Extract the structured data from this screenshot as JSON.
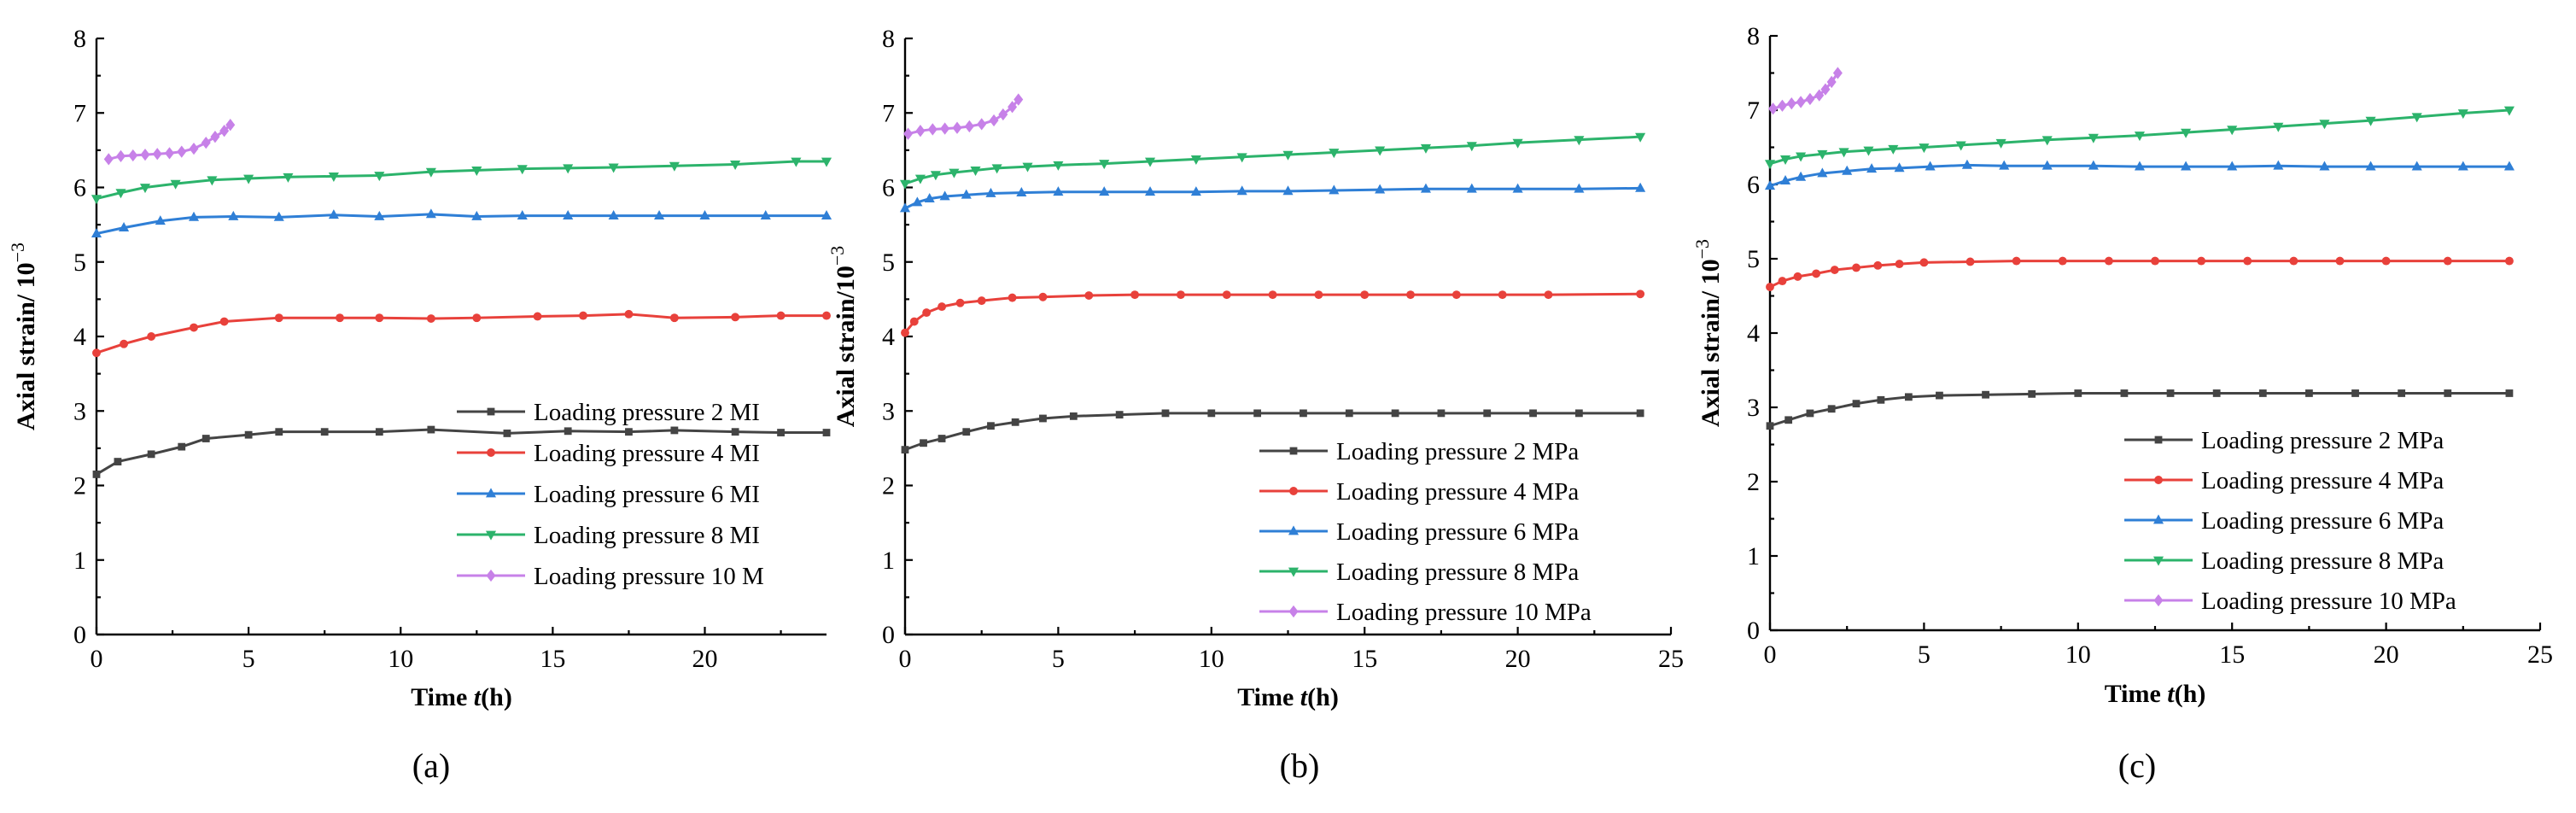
{
  "chart_data": [
    {
      "type": "line",
      "caption": "(a)",
      "xlabel_prefix": "Time ",
      "xlabel_var": "t",
      "xlabel_suffix": "(h)",
      "ylabel_prefix": "Axial strain/ 10",
      "ylabel_exp": "−3",
      "xlim": [
        0,
        24
      ],
      "ylim": [
        0,
        8
      ],
      "xticks": [
        "0",
        "5",
        "10",
        "15",
        "20"
      ],
      "yticks": [
        "0",
        "1",
        "2",
        "3",
        "4",
        "5",
        "6",
        "7",
        "8"
      ],
      "legend_position": "bottom-right",
      "series": [
        {
          "name": "Loading pressure 2 MI",
          "color": "#444444",
          "marker": "square",
          "x": [
            0,
            0.7,
            1.8,
            2.8,
            3.6,
            5,
            6,
            7.5,
            9.3,
            11,
            13.5,
            15.5,
            17.5,
            19,
            21,
            22.5,
            24
          ],
          "y": [
            2.15,
            2.32,
            2.42,
            2.52,
            2.63,
            2.68,
            2.72,
            2.72,
            2.72,
            2.75,
            2.7,
            2.73,
            2.72,
            2.74,
            2.72,
            2.71,
            2.71
          ]
        },
        {
          "name": "Loading pressure 4 MI",
          "color": "#e8413b",
          "marker": "circle",
          "x": [
            0,
            0.9,
            1.8,
            3.2,
            4.2,
            6,
            8,
            9.3,
            11,
            12.5,
            14.5,
            16,
            17.5,
            19,
            21,
            22.5,
            24
          ],
          "y": [
            3.78,
            3.9,
            4.0,
            4.12,
            4.2,
            4.25,
            4.25,
            4.25,
            4.24,
            4.25,
            4.27,
            4.28,
            4.3,
            4.25,
            4.26,
            4.28,
            4.28
          ]
        },
        {
          "name": "Loading pressure 6 MI",
          "color": "#2f7fd6",
          "marker": "triangle-up",
          "x": [
            0,
            0.9,
            2.1,
            3.2,
            4.5,
            6,
            7.8,
            9.3,
            11,
            12.5,
            14,
            15.5,
            17,
            18.5,
            20,
            22,
            24
          ],
          "y": [
            5.38,
            5.46,
            5.55,
            5.6,
            5.61,
            5.6,
            5.63,
            5.61,
            5.64,
            5.61,
            5.62,
            5.62,
            5.62,
            5.62,
            5.62,
            5.62,
            5.62
          ]
        },
        {
          "name": "Loading pressure 8 MI",
          "color": "#2cb36b",
          "marker": "triangle-down",
          "x": [
            0,
            0.8,
            1.6,
            2.6,
            3.8,
            5,
            6.3,
            7.8,
            9.3,
            11,
            12.5,
            14,
            15.5,
            17,
            19,
            21,
            23,
            24
          ],
          "y": [
            5.85,
            5.93,
            6.0,
            6.05,
            6.1,
            6.12,
            6.14,
            6.15,
            6.16,
            6.21,
            6.23,
            6.25,
            6.26,
            6.27,
            6.29,
            6.31,
            6.35,
            6.35
          ]
        },
        {
          "name": "Loading pressure 10 M",
          "color": "#c781e8",
          "marker": "diamond",
          "x": [
            0.4,
            0.8,
            1.2,
            1.6,
            2,
            2.4,
            2.8,
            3.2,
            3.6,
            3.9,
            4.2,
            4.4
          ],
          "y": [
            6.38,
            6.42,
            6.43,
            6.44,
            6.45,
            6.46,
            6.48,
            6.52,
            6.6,
            6.68,
            6.76,
            6.84
          ]
        }
      ]
    },
    {
      "type": "line",
      "caption": "(b)",
      "xlabel_prefix": "Time ",
      "xlabel_var": "t",
      "xlabel_suffix": "(h)",
      "ylabel_prefix": "Axial strain/10",
      "ylabel_exp": "−3",
      "xlim": [
        0,
        25
      ],
      "ylim": [
        0,
        8
      ],
      "xticks": [
        "0",
        "5",
        "10",
        "15",
        "20",
        "25"
      ],
      "yticks": [
        "0",
        "1",
        "2",
        "3",
        "4",
        "5",
        "6",
        "7",
        "8"
      ],
      "legend_position": "bottom-right",
      "series": [
        {
          "name": "Loading pressure 2 MPa",
          "color": "#444444",
          "marker": "square",
          "x": [
            0,
            0.6,
            1.2,
            2,
            2.8,
            3.6,
            4.5,
            5.5,
            7,
            8.5,
            10,
            11.5,
            13,
            14.5,
            16,
            17.5,
            19,
            20.5,
            22,
            24
          ],
          "y": [
            2.48,
            2.57,
            2.63,
            2.72,
            2.8,
            2.85,
            2.9,
            2.93,
            2.95,
            2.97,
            2.97,
            2.97,
            2.97,
            2.97,
            2.97,
            2.97,
            2.97,
            2.97,
            2.97,
            2.97
          ]
        },
        {
          "name": "Loading pressure 4 MPa",
          "color": "#e8413b",
          "marker": "circle",
          "x": [
            0,
            0.3,
            0.7,
            1.2,
            1.8,
            2.5,
            3.5,
            4.5,
            6,
            7.5,
            9,
            10.5,
            12,
            13.5,
            15,
            16.5,
            18,
            19.5,
            21,
            24
          ],
          "y": [
            4.05,
            4.2,
            4.32,
            4.4,
            4.45,
            4.48,
            4.52,
            4.53,
            4.55,
            4.56,
            4.56,
            4.56,
            4.56,
            4.56,
            4.56,
            4.56,
            4.56,
            4.56,
            4.56,
            4.57
          ]
        },
        {
          "name": "Loading pressure 6 MPa",
          "color": "#2f7fd6",
          "marker": "triangle-up",
          "x": [
            0,
            0.4,
            0.8,
            1.3,
            2,
            2.8,
            3.8,
            5,
            6.5,
            8,
            9.5,
            11,
            12.5,
            14,
            15.5,
            17,
            18.5,
            20,
            22,
            24
          ],
          "y": [
            5.72,
            5.8,
            5.85,
            5.88,
            5.9,
            5.92,
            5.93,
            5.94,
            5.94,
            5.94,
            5.94,
            5.95,
            5.95,
            5.96,
            5.97,
            5.98,
            5.98,
            5.98,
            5.98,
            5.99
          ]
        },
        {
          "name": "Loading pressure 8 MPa",
          "color": "#2cb36b",
          "marker": "triangle-down",
          "x": [
            0,
            0.5,
            1,
            1.6,
            2.3,
            3,
            4,
            5,
            6.5,
            8,
            9.5,
            11,
            12.5,
            14,
            15.5,
            17,
            18.5,
            20,
            22,
            24
          ],
          "y": [
            6.05,
            6.12,
            6.17,
            6.2,
            6.23,
            6.26,
            6.28,
            6.3,
            6.32,
            6.35,
            6.38,
            6.41,
            6.44,
            6.47,
            6.5,
            6.53,
            6.56,
            6.6,
            6.64,
            6.68
          ]
        },
        {
          "name": "Loading pressure 10 MPa",
          "color": "#c781e8",
          "marker": "diamond",
          "x": [
            0.1,
            0.5,
            0.9,
            1.3,
            1.7,
            2.1,
            2.5,
            2.9,
            3.2,
            3.5,
            3.7
          ],
          "y": [
            6.72,
            6.76,
            6.78,
            6.79,
            6.8,
            6.82,
            6.85,
            6.9,
            6.98,
            7.08,
            7.18
          ]
        }
      ]
    },
    {
      "type": "line",
      "caption": "(c)",
      "xlabel_prefix": "Time ",
      "xlabel_var": "t",
      "xlabel_suffix": "(h)",
      "ylabel_prefix": "Axial strain/ 10",
      "ylabel_exp": "−3",
      "xlim": [
        0,
        25
      ],
      "ylim": [
        0,
        8
      ],
      "xticks": [
        "0",
        "5",
        "10",
        "15",
        "20",
        "25"
      ],
      "yticks": [
        "0",
        "1",
        "2",
        "3",
        "4",
        "5",
        "6",
        "7",
        "8"
      ],
      "legend_position": "bottom-right",
      "series": [
        {
          "name": "Loading pressure 2 MPa",
          "color": "#444444",
          "marker": "square",
          "x": [
            0,
            0.6,
            1.3,
            2,
            2.8,
            3.6,
            4.5,
            5.5,
            7,
            8.5,
            10,
            11.5,
            13,
            14.5,
            16,
            17.5,
            19,
            20.5,
            22,
            24
          ],
          "y": [
            2.75,
            2.83,
            2.92,
            2.98,
            3.05,
            3.1,
            3.14,
            3.16,
            3.17,
            3.18,
            3.19,
            3.19,
            3.19,
            3.19,
            3.19,
            3.19,
            3.19,
            3.19,
            3.19,
            3.19
          ]
        },
        {
          "name": "Loading pressure 4 MPa",
          "color": "#e8413b",
          "marker": "circle",
          "x": [
            0,
            0.4,
            0.9,
            1.5,
            2.1,
            2.8,
            3.5,
            4.2,
            5,
            6.5,
            8,
            9.5,
            11,
            12.5,
            14,
            15.5,
            17,
            18.5,
            20,
            22,
            24
          ],
          "y": [
            4.62,
            4.7,
            4.76,
            4.8,
            4.85,
            4.88,
            4.91,
            4.93,
            4.95,
            4.96,
            4.97,
            4.97,
            4.97,
            4.97,
            4.97,
            4.97,
            4.97,
            4.97,
            4.97,
            4.97,
            4.97
          ]
        },
        {
          "name": "Loading pressure 6 MPa",
          "color": "#2f7fd6",
          "marker": "triangle-up",
          "x": [
            0,
            0.5,
            1,
            1.7,
            2.5,
            3.3,
            4.2,
            5.2,
            6.4,
            7.6,
            9,
            10.5,
            12,
            13.5,
            15,
            16.5,
            18,
            19.5,
            21,
            22.5,
            24
          ],
          "y": [
            5.98,
            6.05,
            6.1,
            6.15,
            6.18,
            6.21,
            6.22,
            6.24,
            6.26,
            6.25,
            6.25,
            6.25,
            6.24,
            6.24,
            6.24,
            6.25,
            6.24,
            6.24,
            6.24,
            6.24,
            6.24
          ]
        },
        {
          "name": "Loading pressure 8 MPa",
          "color": "#2cb36b",
          "marker": "triangle-down",
          "x": [
            0,
            0.5,
            1,
            1.7,
            2.4,
            3.2,
            4,
            5,
            6.2,
            7.5,
            9,
            10.5,
            12,
            13.5,
            15,
            16.5,
            18,
            19.5,
            21,
            22.5,
            24
          ],
          "y": [
            6.28,
            6.34,
            6.38,
            6.41,
            6.44,
            6.46,
            6.48,
            6.5,
            6.53,
            6.56,
            6.6,
            6.63,
            6.66,
            6.7,
            6.74,
            6.78,
            6.82,
            6.86,
            6.91,
            6.96,
            7.0
          ]
        },
        {
          "name": "Loading pressure 10 MPa",
          "color": "#c781e8",
          "marker": "diamond",
          "x": [
            0.1,
            0.4,
            0.7,
            1,
            1.3,
            1.6,
            1.8,
            2,
            2.2
          ],
          "y": [
            7.02,
            7.06,
            7.09,
            7.11,
            7.15,
            7.2,
            7.28,
            7.38,
            7.5
          ]
        }
      ]
    }
  ]
}
